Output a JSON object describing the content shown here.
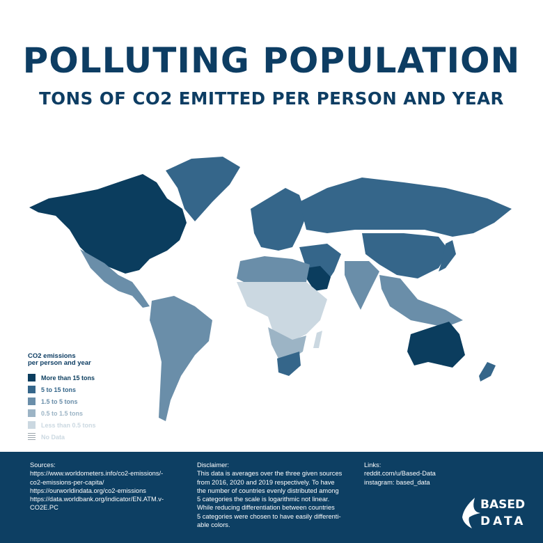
{
  "header": {
    "title": "POLLUTING POPULATION",
    "subtitle": "TONS OF CO2 EMITTED PER PERSON AND YEAR"
  },
  "legend": {
    "title_line1": "CO2 emissions",
    "title_line2": "per person and year",
    "items": [
      {
        "label": "More than 15 tons",
        "color": "#0b3d5e"
      },
      {
        "label": "5 to 15 tons",
        "color": "#35668a"
      },
      {
        "label": "1.5 to 5 tons",
        "color": "#6a8ea9"
      },
      {
        "label": "0.5 to 1.5 tons",
        "color": "#9cb4c5"
      },
      {
        "label": "Less than 0.5 tons",
        "color": "#cbd8e1"
      },
      {
        "label": "No Data",
        "color": "#9aa4ab"
      }
    ]
  },
  "footer": {
    "sources_title": "Sources:",
    "sources": [
      "https://www.worldometers.info/co2-emissions/-",
      "co2-emissions-per-capita/",
      "https://ourworldindata.org/co2-emissions",
      "https://data.worldbank.org/indicator/EN.ATM.v-",
      "CO2E.PC"
    ],
    "disclaimer_title": "Disclaimer:",
    "disclaimer": [
      "This data is averages over the three given sources",
      "from 2016, 2020 and 2019 respectively. To have",
      "the number of countries evenly distributed among",
      "5 categories the scale is logarithmic not linear.",
      "While reducing differentiation between countries",
      "5 categories were chosen to have easily differenti-",
      "able colors."
    ],
    "links_title": "Links:",
    "links": [
      "reddit.com/u/Based-Data",
      "instagram: based_data"
    ],
    "logo_line1": "BASED",
    "logo_line2": "DATA"
  },
  "map_regions": [
    {
      "region": "Canada / USA",
      "category": "More than 15 tons"
    },
    {
      "region": "Greenland",
      "category": "5 to 15 tons"
    },
    {
      "region": "Russia",
      "category": "5 to 15 tons"
    },
    {
      "region": "Australia",
      "category": "More than 15 tons"
    },
    {
      "region": "Saudi Arabia",
      "category": "More than 15 tons"
    },
    {
      "region": "China",
      "category": "5 to 15 tons"
    },
    {
      "region": "South America",
      "category": "1.5 to 5 tons"
    },
    {
      "region": "Central Africa",
      "category": "Less than 0.5 tons"
    },
    {
      "region": "South Africa",
      "category": "5 to 15 tons"
    },
    {
      "region": "India",
      "category": "1.5 to 5 tons"
    }
  ]
}
